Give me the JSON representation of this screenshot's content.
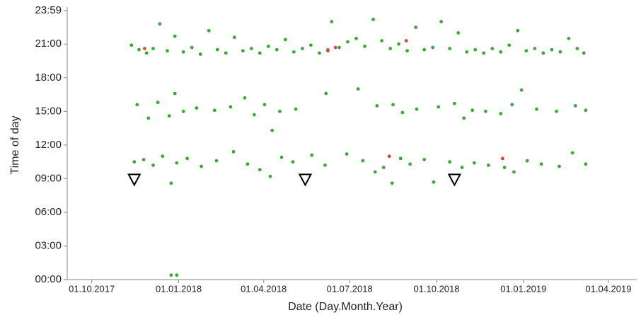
{
  "chart_data": {
    "type": "scatter",
    "x_label": "Date (Day.Month.Year)",
    "y_label": "Time of day",
    "xlim": [
      "2017-09-05",
      "2019-05-01"
    ],
    "xticks": [
      {
        "value": "2017-10-01",
        "label": "01.10.2017"
      },
      {
        "value": "2018-01-01",
        "label": "01.01.2018"
      },
      {
        "value": "2018-04-01",
        "label": "01.04.2018"
      },
      {
        "value": "2018-07-01",
        "label": "01.07.2018"
      },
      {
        "value": "2018-10-01",
        "label": "01.10.2018"
      },
      {
        "value": "2019-01-01",
        "label": "01.01.2019"
      },
      {
        "value": "2019-04-01",
        "label": "01.04.2019"
      }
    ],
    "ylim": [
      0,
      23.983
    ],
    "yticks": [
      {
        "value": 0,
        "label": "00:00"
      },
      {
        "value": 3,
        "label": "03:00"
      },
      {
        "value": 6,
        "label": "06:00"
      },
      {
        "value": 9,
        "label": "09:00"
      },
      {
        "value": 12,
        "label": "12:00"
      },
      {
        "value": 15,
        "label": "15:00"
      },
      {
        "value": 18,
        "label": "18:00"
      },
      {
        "value": 21,
        "label": "21:00"
      },
      {
        "value": 23.983,
        "label": "23:59"
      }
    ],
    "series": [
      {
        "color": "#3aaa35",
        "marker": "dot",
        "x": [
          "2017-11-12",
          "2017-11-20",
          "2017-11-28",
          "2017-12-05",
          "2017-12-12",
          "2017-12-20",
          "2017-12-28",
          "2018-01-06",
          "2018-01-15",
          "2018-01-24",
          "2018-02-02",
          "2018-02-11",
          "2018-02-20",
          "2018-03-01",
          "2018-03-10",
          "2018-03-19",
          "2018-03-28",
          "2018-04-06",
          "2018-04-15",
          "2018-04-24",
          "2018-05-03",
          "2018-05-12",
          "2018-05-21",
          "2018-05-30",
          "2018-06-08",
          "2018-06-12",
          "2018-06-20",
          "2018-06-29",
          "2018-07-08",
          "2018-07-17",
          "2018-07-26",
          "2018-08-04",
          "2018-08-13",
          "2018-08-22",
          "2018-08-31",
          "2018-09-09",
          "2018-09-18",
          "2018-09-27",
          "2018-10-06",
          "2018-10-15",
          "2018-10-24",
          "2018-11-02",
          "2018-11-11",
          "2018-11-20",
          "2018-11-29",
          "2018-12-08",
          "2018-12-17",
          "2018-12-26",
          "2019-01-04",
          "2019-01-13",
          "2019-01-22",
          "2019-01-31",
          "2019-02-09",
          "2019-02-18",
          "2019-02-27",
          "2019-03-06",
          "2017-11-18",
          "2017-11-30",
          "2017-12-10",
          "2017-12-22",
          "2017-12-28",
          "2018-01-06",
          "2018-01-20",
          "2018-02-08",
          "2018-02-25",
          "2018-03-12",
          "2018-03-22",
          "2018-04-02",
          "2018-04-10",
          "2018-04-18",
          "2018-05-05",
          "2018-06-06",
          "2018-07-10",
          "2018-07-30",
          "2018-08-16",
          "2018-08-26",
          "2018-09-10",
          "2018-10-03",
          "2018-10-20",
          "2018-10-30",
          "2018-11-08",
          "2018-11-22",
          "2018-12-08",
          "2018-12-20",
          "2018-12-30",
          "2019-01-15",
          "2019-02-05",
          "2019-02-25",
          "2019-03-08",
          "2017-11-15",
          "2017-11-25",
          "2017-12-05",
          "2017-12-15",
          "2017-12-24",
          "2017-12-30",
          "2018-01-10",
          "2018-01-25",
          "2018-02-10",
          "2018-02-28",
          "2018-03-15",
          "2018-03-28",
          "2018-04-08",
          "2018-04-20",
          "2018-05-02",
          "2018-05-22",
          "2018-06-05",
          "2018-06-28",
          "2018-07-15",
          "2018-07-28",
          "2018-08-06",
          "2018-08-15",
          "2018-08-24",
          "2018-09-03",
          "2018-09-18",
          "2018-09-28",
          "2018-10-15",
          "2018-10-28",
          "2018-11-10",
          "2018-11-25",
          "2018-12-12",
          "2018-12-22",
          "2019-01-05",
          "2019-01-20",
          "2019-02-08",
          "2019-02-22",
          "2019-03-08",
          "2017-12-24",
          "2017-12-30"
        ],
        "values": [
          20.9,
          20.5,
          20.2,
          20.6,
          22.8,
          20.4,
          21.7,
          20.3,
          20.7,
          20.1,
          22.2,
          20.5,
          20.2,
          21.6,
          20.4,
          20.6,
          20.2,
          20.8,
          20.5,
          21.4,
          20.3,
          20.6,
          20.9,
          20.2,
          20.5,
          23.0,
          20.7,
          21.2,
          21.5,
          20.8,
          23.2,
          21.3,
          20.6,
          21.0,
          20.4,
          22.5,
          20.5,
          20.7,
          23.0,
          20.6,
          22.0,
          20.3,
          20.5,
          20.2,
          20.6,
          20.3,
          20.9,
          22.2,
          20.4,
          20.6,
          20.2,
          20.5,
          20.3,
          21.5,
          20.6,
          20.2,
          15.6,
          14.4,
          15.8,
          14.6,
          16.6,
          15.0,
          15.3,
          15.1,
          15.4,
          16.2,
          14.7,
          15.6,
          13.3,
          15.0,
          15.2,
          16.6,
          17.0,
          15.5,
          15.6,
          14.9,
          15.2,
          15.4,
          15.7,
          14.4,
          15.1,
          15.0,
          14.8,
          15.6,
          16.9,
          15.2,
          15.0,
          15.5,
          15.1,
          10.5,
          10.7,
          10.2,
          11.0,
          8.6,
          10.4,
          10.8,
          10.1,
          10.6,
          11.4,
          10.3,
          9.8,
          9.2,
          10.9,
          10.5,
          11.1,
          10.2,
          11.2,
          10.6,
          9.6,
          10.0,
          8.6,
          10.8,
          10.3,
          10.7,
          8.7,
          10.5,
          10.0,
          10.4,
          10.2,
          10.0,
          9.6,
          10.6,
          10.3,
          10.1,
          11.3,
          10.3,
          0.4,
          0.4
        ]
      },
      {
        "color": "#e8413c",
        "marker": "dot",
        "x": [
          "2017-11-26",
          "2018-06-08",
          "2018-06-16",
          "2018-08-30",
          "2018-08-12",
          "2018-12-10"
        ],
        "values": [
          20.6,
          20.4,
          20.7,
          21.3,
          11.0,
          10.8
        ]
      },
      {
        "color": "#000000",
        "marker": "triangle",
        "x": [
          "2017-11-15",
          "2018-05-15",
          "2018-10-20"
        ],
        "values": [
          9.0,
          9.0,
          9.0
        ]
      }
    ]
  }
}
